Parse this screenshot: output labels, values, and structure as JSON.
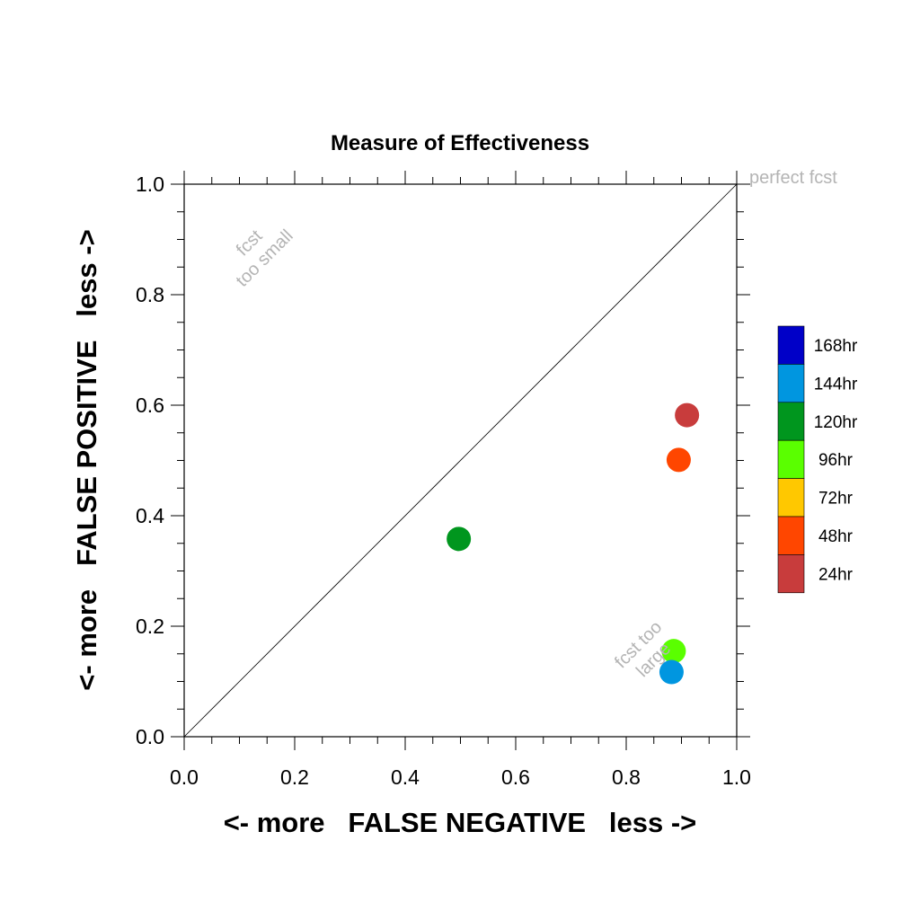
{
  "chart_data": {
    "type": "scatter",
    "title": "Measure of Effectiveness",
    "xlabel": "<- more   FALSE NEGATIVE   less ->",
    "ylabel": "<- more   FALSE POSITIVE   less ->",
    "xlim": [
      0,
      1
    ],
    "ylim": [
      0,
      1
    ],
    "x_ticks": [
      "0.0",
      "0.2",
      "0.4",
      "0.6",
      "0.8",
      "1.0"
    ],
    "y_ticks": [
      "0.0",
      "0.2",
      "0.4",
      "0.6",
      "0.8",
      "1.0"
    ],
    "grid": false,
    "diagonal_line": true,
    "annotations": {
      "perfect": "perfect fcst",
      "too_small_line1": "fcst",
      "too_small_line2": "too small",
      "too_large_line1": "fcst too",
      "too_large_line2": "large"
    },
    "legend_position": "right",
    "legend": [
      {
        "label": "168hr",
        "color": "#0000c8"
      },
      {
        "label": "144hr",
        "color": "#0096e0"
      },
      {
        "label": "120hr",
        "color": "#00961e"
      },
      {
        "label": "96hr",
        "color": "#5aff00"
      },
      {
        "label": "72hr",
        "color": "#ffc800"
      },
      {
        "label": "48hr",
        "color": "#ff4600"
      },
      {
        "label": "24hr",
        "color": "#c83c3c"
      }
    ],
    "points": [
      {
        "series": "24hr",
        "x": 0.91,
        "y": 0.582,
        "color": "#c83c3c"
      },
      {
        "series": "48hr",
        "x": 0.895,
        "y": 0.501,
        "color": "#ff4600"
      },
      {
        "series": "120hr",
        "x": 0.497,
        "y": 0.358,
        "color": "#00961e"
      },
      {
        "series": "96hr",
        "x": 0.886,
        "y": 0.155,
        "color": "#5aff00"
      },
      {
        "series": "144hr",
        "x": 0.882,
        "y": 0.117,
        "color": "#0096e0"
      }
    ]
  }
}
